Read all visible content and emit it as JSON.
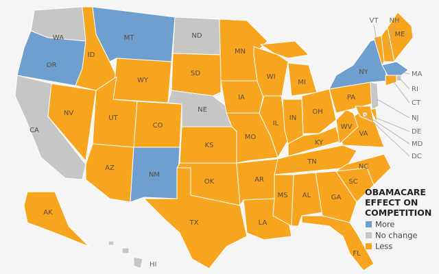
{
  "legend": {
    "title_lines": [
      "OBAMACARE",
      "EFFECT ON",
      "COMPETITION"
    ],
    "items": [
      {
        "key": "more",
        "label": "More",
        "color": "#6f9fcf"
      },
      {
        "key": "none",
        "label": "No change",
        "color": "#c6c6c6"
      },
      {
        "key": "less",
        "label": "Less",
        "color": "#f7a51e"
      }
    ]
  },
  "states": [
    {
      "code": "WA",
      "effect": "none"
    },
    {
      "code": "OR",
      "effect": "more"
    },
    {
      "code": "CA",
      "effect": "none"
    },
    {
      "code": "NV",
      "effect": "less"
    },
    {
      "code": "ID",
      "effect": "less"
    },
    {
      "code": "MT",
      "effect": "more"
    },
    {
      "code": "WY",
      "effect": "less"
    },
    {
      "code": "UT",
      "effect": "less"
    },
    {
      "code": "AZ",
      "effect": "less"
    },
    {
      "code": "CO",
      "effect": "less"
    },
    {
      "code": "NM",
      "effect": "more"
    },
    {
      "code": "ND",
      "effect": "none"
    },
    {
      "code": "SD",
      "effect": "less"
    },
    {
      "code": "NE",
      "effect": "none"
    },
    {
      "code": "KS",
      "effect": "less"
    },
    {
      "code": "OK",
      "effect": "less"
    },
    {
      "code": "TX",
      "effect": "less"
    },
    {
      "code": "MN",
      "effect": "less"
    },
    {
      "code": "IA",
      "effect": "less"
    },
    {
      "code": "MO",
      "effect": "less"
    },
    {
      "code": "AR",
      "effect": "less"
    },
    {
      "code": "LA",
      "effect": "less"
    },
    {
      "code": "WI",
      "effect": "less"
    },
    {
      "code": "IL",
      "effect": "less"
    },
    {
      "code": "MI",
      "effect": "less"
    },
    {
      "code": "IN",
      "effect": "less"
    },
    {
      "code": "OH",
      "effect": "less"
    },
    {
      "code": "KY",
      "effect": "less"
    },
    {
      "code": "TN",
      "effect": "less"
    },
    {
      "code": "MS",
      "effect": "less"
    },
    {
      "code": "AL",
      "effect": "less"
    },
    {
      "code": "GA",
      "effect": "less"
    },
    {
      "code": "FL",
      "effect": "less"
    },
    {
      "code": "SC",
      "effect": "less"
    },
    {
      "code": "NC",
      "effect": "less"
    },
    {
      "code": "VA",
      "effect": "less"
    },
    {
      "code": "WV",
      "effect": "less"
    },
    {
      "code": "PA",
      "effect": "less"
    },
    {
      "code": "NY",
      "effect": "more"
    },
    {
      "code": "VT",
      "effect": "less"
    },
    {
      "code": "NH",
      "effect": "less"
    },
    {
      "code": "ME",
      "effect": "less"
    },
    {
      "code": "MA",
      "effect": "more"
    },
    {
      "code": "RI",
      "effect": "none"
    },
    {
      "code": "CT",
      "effect": "less"
    },
    {
      "code": "NJ",
      "effect": "none"
    },
    {
      "code": "DE",
      "effect": "less"
    },
    {
      "code": "MD",
      "effect": "less"
    },
    {
      "code": "DC",
      "effect": "none"
    },
    {
      "code": "AK",
      "effect": "less"
    },
    {
      "code": "HI",
      "effect": "none"
    }
  ]
}
